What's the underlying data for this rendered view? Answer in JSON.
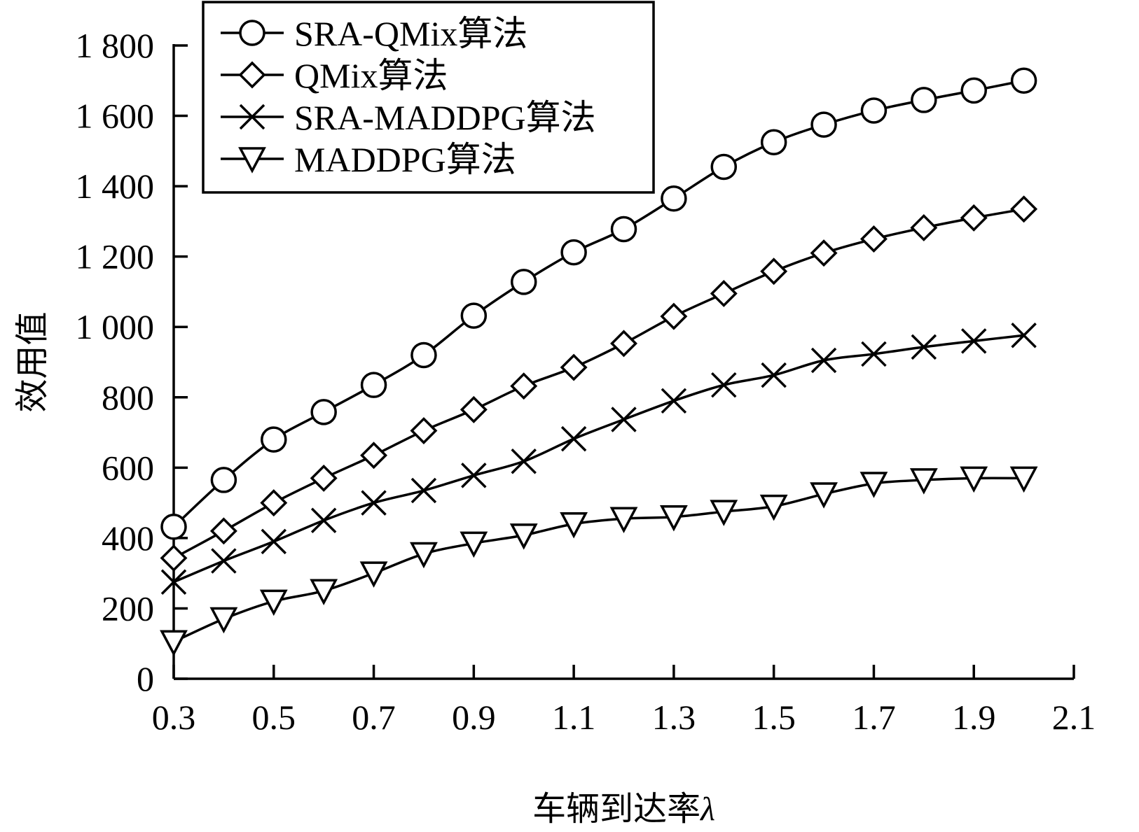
{
  "chart_data": {
    "type": "line",
    "xlabel": "车辆到达率",
    "xlabel_symbol": "λ",
    "ylabel": "效用值",
    "xlim": [
      0.3,
      2.1
    ],
    "ylim": [
      0,
      1800
    ],
    "x_ticks": [
      0.3,
      0.5,
      0.7,
      0.9,
      1.1,
      1.3,
      1.5,
      1.7,
      1.9,
      2.1
    ],
    "x_tick_labels": [
      "0.3",
      "0.5",
      "0.7",
      "0.9",
      "1.1",
      "1.3",
      "1.5",
      "1.7",
      "1.9",
      "2.1"
    ],
    "y_ticks": [
      0,
      200,
      400,
      600,
      800,
      1000,
      1200,
      1400,
      1600,
      1800
    ],
    "y_tick_labels": [
      "0",
      "200",
      "400",
      "600",
      "800",
      "1 000",
      "1 200",
      "1 400",
      "1 600",
      "1 800"
    ],
    "grid": false,
    "legend_position": "top-left",
    "x": [
      0.3,
      0.4,
      0.5,
      0.6,
      0.7,
      0.8,
      0.9,
      1.0,
      1.1,
      1.2,
      1.3,
      1.4,
      1.5,
      1.6,
      1.7,
      1.8,
      1.9,
      2.0
    ],
    "series": [
      {
        "name": "SRA-QMix算法",
        "marker": "circle",
        "values": [
          432,
          565,
          680,
          758,
          835,
          920,
          1032,
          1128,
          1212,
          1278,
          1365,
          1455,
          1525,
          1575,
          1615,
          1645,
          1672,
          1700
        ]
      },
      {
        "name": "QMix算法",
        "marker": "diamond",
        "values": [
          343,
          420,
          500,
          570,
          635,
          705,
          765,
          832,
          885,
          953,
          1030,
          1095,
          1158,
          1210,
          1250,
          1282,
          1310,
          1335
        ]
      },
      {
        "name": "SRA-MADDPG算法",
        "marker": "x",
        "values": [
          275,
          335,
          390,
          450,
          500,
          535,
          578,
          618,
          682,
          737,
          790,
          835,
          863,
          905,
          923,
          943,
          960,
          976
        ]
      },
      {
        "name": "MADDPG算法",
        "marker": "triangle-down",
        "values": [
          105,
          170,
          220,
          250,
          300,
          355,
          385,
          408,
          440,
          455,
          460,
          475,
          490,
          525,
          555,
          565,
          570,
          570
        ]
      }
    ]
  }
}
